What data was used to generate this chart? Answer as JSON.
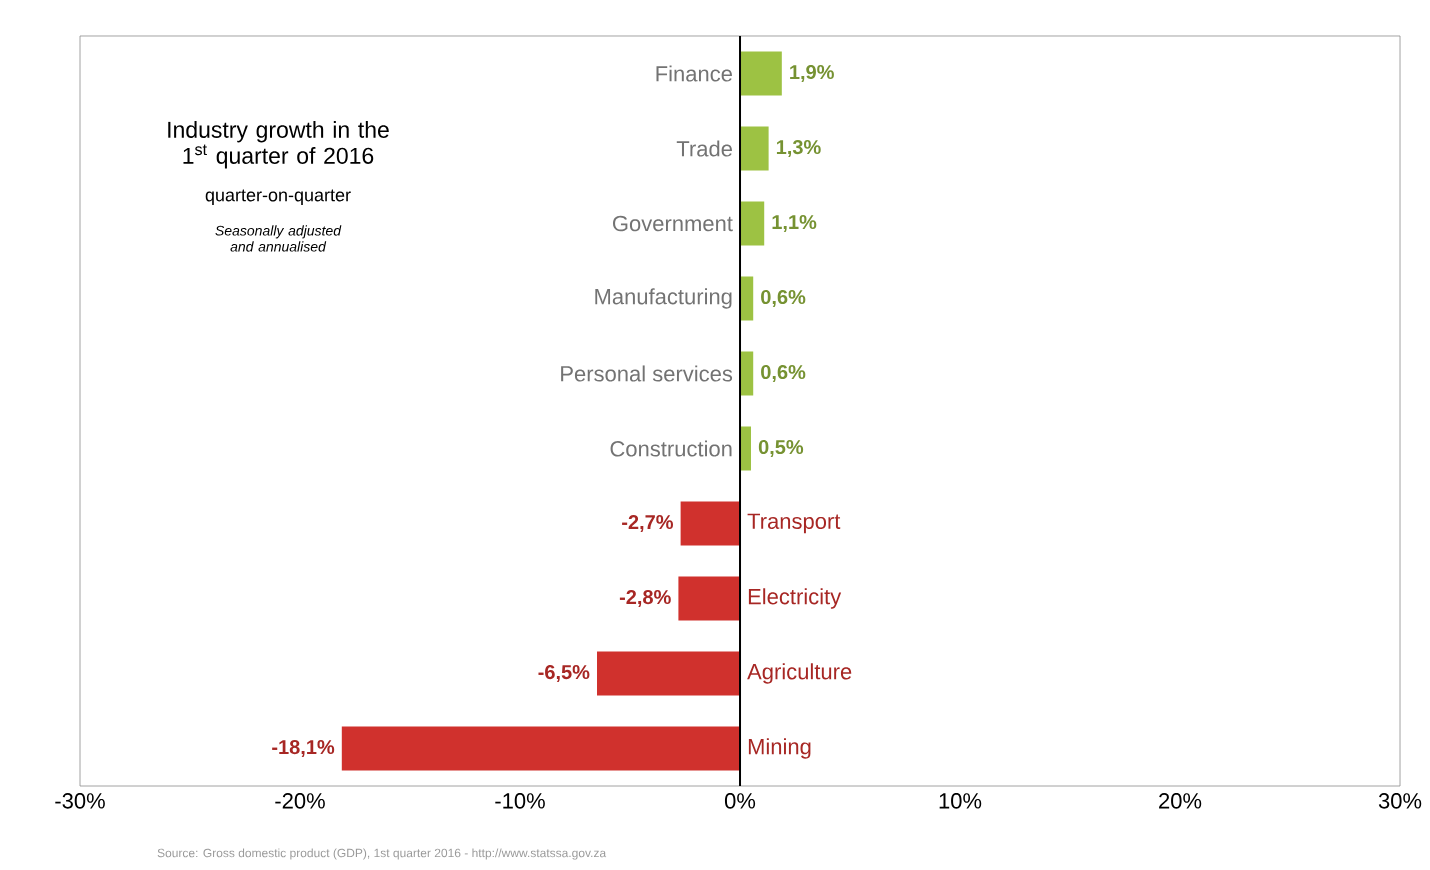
{
  "chart_data": {
    "type": "bar",
    "orientation": "horizontal",
    "title": "Industry growth in the 1$^{st}$ quarter of 2016",
    "subtitle": "quarter-on-quarter",
    "annotations": [
      "Seasonally adjusted and annualised",
      "Source: Gross domestic product (GDP), 1st quarter 2016 - http://www.statssa.gov.za"
    ],
    "categories": [
      "Finance",
      "Trade",
      "Government",
      "Manufacturing",
      "Personal services",
      "Construction",
      "Transport",
      "Electricity",
      "Agriculture",
      "Mining"
    ],
    "values": [
      1.9,
      1.3,
      1.1,
      0.6,
      0.6,
      0.5,
      -2.7,
      -2.8,
      -6.5,
      -18.1
    ],
    "value_labels": [
      "1,9%",
      "1,3%",
      "1,1%",
      "0,6%",
      "0,6%",
      "0,5%",
      "-2,7%",
      "-2,8%",
      "-6,5%",
      "-18,1%"
    ],
    "colors": [
      "#9dc243",
      "#9dc243",
      "#9dc243",
      "#9dc243",
      "#9dc243",
      "#9dc243",
      "#d0312d",
      "#d0312d",
      "#d0312d",
      "#d0312d"
    ],
    "xlim": [
      -30,
      30
    ],
    "xticks": [
      {
        "value": -30,
        "label": "-30%"
      },
      {
        "value": -20,
        "label": "-20%"
      },
      {
        "value": -10,
        "label": "-10%"
      },
      {
        "value": 0,
        "label": "0%"
      },
      {
        "value": 10,
        "label": "10%"
      },
      {
        "value": 20,
        "label": "20%"
      },
      {
        "value": 30,
        "label": "30%"
      }
    ],
    "grid": false
  }
}
